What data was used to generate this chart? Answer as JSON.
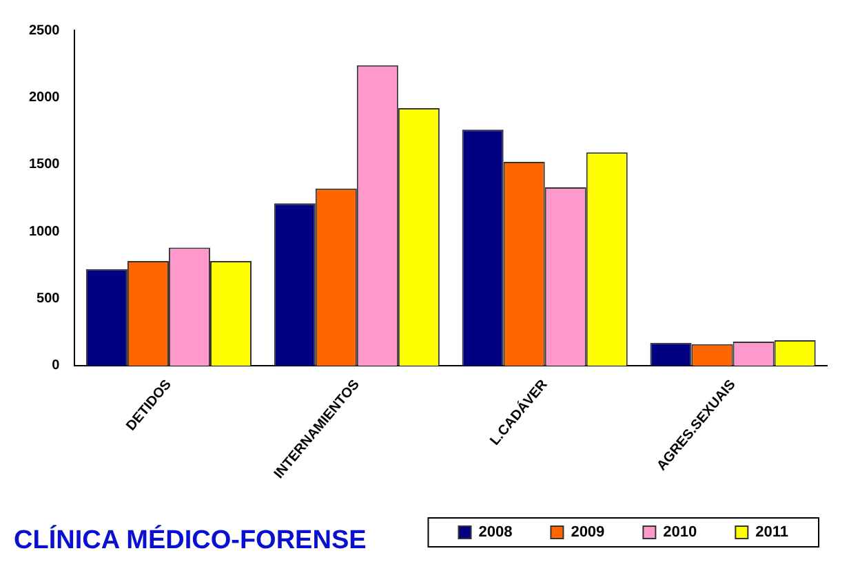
{
  "chart_data": {
    "type": "bar",
    "title": "CLÍNICA MÉDICO-FORENSE",
    "categories": [
      "DETIDOS",
      "INTERNAMIENTOS",
      "L.CADÁVER",
      "AGRES.SEXUAIS"
    ],
    "series": [
      {
        "name": "2008",
        "color": "#000080",
        "values": [
          720,
          1210,
          1760,
          170
        ]
      },
      {
        "name": "2009",
        "color": "#ff6600",
        "values": [
          780,
          1320,
          1520,
          160
        ]
      },
      {
        "name": "2010",
        "color": "#ff99cc",
        "values": [
          880,
          2240,
          1330,
          180
        ]
      },
      {
        "name": "2011",
        "color": "#ffff00",
        "values": [
          780,
          1920,
          1590,
          190
        ]
      }
    ],
    "ylim": [
      0,
      2500
    ],
    "yticks": [
      0,
      500,
      1000,
      1500,
      2000,
      2500
    ],
    "grid": false,
    "legend": "bottom right"
  }
}
